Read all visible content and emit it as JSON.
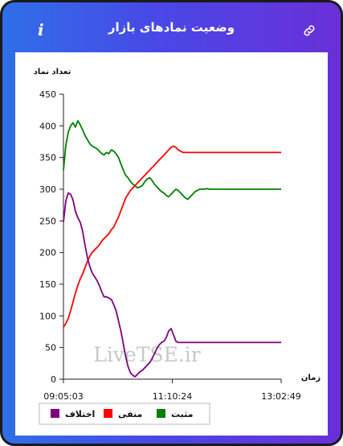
{
  "header": {
    "title": "وضعیت نمادهای بازار",
    "info_icon_glyph": "i",
    "link_icon": "link-icon"
  },
  "chart_data": {
    "type": "line",
    "ylabel": "تعداد نماد",
    "xlabel": "زمان",
    "ylim": [
      0,
      450
    ],
    "yticks": [
      0,
      50,
      100,
      150,
      200,
      250,
      300,
      350,
      400,
      450
    ],
    "xticks": [
      "09:05:03",
      "11:10:24",
      "13:02:49"
    ],
    "x": [
      0,
      3,
      6,
      9,
      12,
      15,
      18,
      21,
      24,
      27,
      30,
      33,
      36,
      39,
      42,
      45,
      48,
      51,
      54,
      57,
      60,
      63,
      66,
      69,
      72,
      75,
      78,
      81,
      84,
      87,
      90,
      93,
      96,
      99,
      102,
      105,
      108,
      111,
      114,
      117,
      120,
      123,
      126,
      129,
      132,
      135,
      138,
      141,
      144,
      147,
      150,
      153,
      156,
      159,
      162,
      165,
      168,
      171,
      174,
      177,
      180,
      183,
      186,
      189,
      192,
      195,
      198,
      201,
      204,
      207,
      210,
      213,
      216,
      219,
      222,
      225,
      228,
      231,
      234,
      237,
      240,
      243,
      246,
      249,
      252,
      255,
      258,
      261,
      264,
      267,
      270,
      273
    ],
    "series": [
      {
        "name": "مثبت",
        "color": "#008000",
        "values": [
          330,
          370,
          390,
          400,
          405,
          398,
          408,
          402,
          394,
          385,
          378,
          372,
          368,
          366,
          364,
          360,
          356,
          354,
          358,
          356,
          362,
          360,
          356,
          350,
          340,
          330,
          322,
          318,
          312,
          308,
          305,
          302,
          304,
          306,
          312,
          316,
          318,
          314,
          308,
          304,
          300,
          296,
          294,
          290,
          288,
          292,
          296,
          300,
          298,
          294,
          290,
          286,
          284,
          288,
          292,
          296,
          298,
          300,
          300,
          300,
          301,
          300,
          300,
          300,
          300,
          300,
          300,
          300,
          300,
          300,
          300,
          300,
          300,
          300,
          300,
          300,
          300,
          300,
          300,
          300,
          300,
          300,
          300,
          300,
          300,
          300,
          300,
          300,
          300,
          300,
          300,
          300
        ]
      },
      {
        "name": "منفی",
        "color": "#ff0000",
        "values": [
          82,
          88,
          96,
          108,
          122,
          136,
          148,
          158,
          166,
          176,
          186,
          194,
          200,
          204,
          208,
          212,
          218,
          222,
          226,
          230,
          236,
          240,
          248,
          256,
          266,
          276,
          286,
          292,
          298,
          302,
          306,
          310,
          314,
          318,
          322,
          326,
          330,
          334,
          338,
          342,
          346,
          350,
          354,
          358,
          362,
          366,
          368,
          366,
          362,
          360,
          358,
          358,
          358,
          358,
          358,
          358,
          358,
          358,
          358,
          358,
          358,
          358,
          358,
          358,
          358,
          358,
          358,
          358,
          358,
          358,
          358,
          358,
          358,
          358,
          358,
          358,
          358,
          358,
          358,
          358,
          358,
          358,
          358,
          358,
          358,
          358,
          358,
          358,
          358,
          358,
          358,
          358
        ]
      },
      {
        "name": "اختلاف",
        "color": "#800080",
        "values": [
          248,
          282,
          294,
          292,
          283,
          265,
          255,
          248,
          234,
          212,
          192,
          178,
          168,
          162,
          156,
          148,
          138,
          130,
          130,
          128,
          126,
          118,
          108,
          92,
          76,
          56,
          36,
          20,
          10,
          6,
          4,
          8,
          12,
          14,
          18,
          22,
          26,
          32,
          40,
          48,
          54,
          58,
          60,
          66,
          76,
          80,
          70,
          60,
          58,
          58,
          58,
          58,
          58,
          58,
          58,
          58,
          58,
          58,
          58,
          58,
          58,
          58,
          58,
          58,
          58,
          58,
          58,
          58,
          58,
          58,
          58,
          58,
          58,
          58,
          58,
          58,
          58,
          58,
          58,
          58,
          58,
          58,
          58,
          58,
          58,
          58,
          58,
          58,
          58,
          58,
          58,
          58
        ]
      }
    ],
    "legend_position": "bottom",
    "watermark": "LiveTSE.ir"
  }
}
